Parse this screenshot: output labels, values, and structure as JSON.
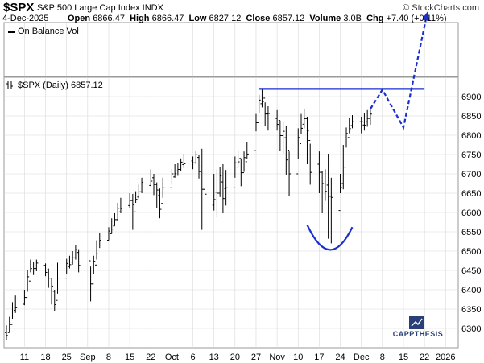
{
  "header": {
    "symbol": "$SPX",
    "name": "S&P 500 Large Cap Index INDX",
    "source": "© StockCharts.com",
    "date": "4-Dec-2025",
    "open_label": "Open",
    "open": "6866.47",
    "high_label": "High",
    "high": "6866.47",
    "low_label": "Low",
    "low": "6827.12",
    "close_label": "Close",
    "close": "6857.12",
    "volume_label": "Volume",
    "volume": "3.0B",
    "chg_label": "Chg",
    "chg": "+7.40 (+0.11%)"
  },
  "indicator_label": "On Balance Vol",
  "price_label": "$SPX (Daily) 6857.12",
  "logo_text": "CAPPTHESIS",
  "colors": {
    "price_bars": "#000000",
    "annotation": "#1a2fd0",
    "grid": "#d8d8d8",
    "logo": "#2a3f78"
  },
  "chart_data": {
    "type": "ohlc",
    "title": "$SPX (Daily) 6857.12",
    "ylim": [
      6250,
      6950
    ],
    "yticks": [
      6300,
      6350,
      6400,
      6450,
      6500,
      6550,
      6600,
      6650,
      6700,
      6750,
      6800,
      6850,
      6900
    ],
    "x_tick_labels": [
      "11",
      "18",
      "25",
      "Sep",
      "8",
      "15",
      "22",
      "Oct",
      "6",
      "13",
      "20",
      "27",
      "Nov",
      "10",
      "17",
      "24",
      "Dec",
      "8",
      "15",
      "22",
      "2026"
    ],
    "x_tick_dates": [
      "2025-08-11",
      "2025-08-18",
      "2025-08-25",
      "2025-09-01",
      "2025-09-08",
      "2025-09-15",
      "2025-09-22",
      "2025-09-29",
      "2025-10-06",
      "2025-10-13",
      "2025-10-20",
      "2025-10-27",
      "2025-11-03",
      "2025-11-10",
      "2025-11-17",
      "2025-11-24",
      "2025-12-01",
      "2025-12-08",
      "2025-12-15",
      "2025-12-22",
      "2025-12-29"
    ],
    "grid": true,
    "series": [
      {
        "type": "ohlc",
        "bars": [
          {
            "date": "2025-08-05",
            "high": 6308,
            "low": 6270
          },
          {
            "date": "2025-08-06",
            "high": 6330,
            "low": 6290
          },
          {
            "date": "2025-08-07",
            "high": 6368,
            "low": 6325
          },
          {
            "date": "2025-08-08",
            "high": 6385,
            "low": 6340
          },
          {
            "date": "2025-08-11",
            "high": 6400,
            "low": 6360
          },
          {
            "date": "2025-08-12",
            "high": 6450,
            "low": 6395
          },
          {
            "date": "2025-08-13",
            "high": 6478,
            "low": 6445
          },
          {
            "date": "2025-08-14",
            "high": 6472,
            "low": 6438
          },
          {
            "date": "2025-08-15",
            "high": 6478,
            "low": 6448
          },
          {
            "date": "2025-08-18",
            "high": 6468,
            "low": 6435
          },
          {
            "date": "2025-08-19",
            "high": 6455,
            "low": 6405
          },
          {
            "date": "2025-08-20",
            "high": 6430,
            "low": 6362
          },
          {
            "date": "2025-08-21",
            "high": 6400,
            "low": 6345
          },
          {
            "date": "2025-08-22",
            "high": 6470,
            "low": 6390
          },
          {
            "date": "2025-08-25",
            "high": 6480,
            "low": 6440
          },
          {
            "date": "2025-08-26",
            "high": 6488,
            "low": 6455
          },
          {
            "date": "2025-08-27",
            "high": 6500,
            "low": 6465
          },
          {
            "date": "2025-08-28",
            "high": 6515,
            "low": 6478
          },
          {
            "date": "2025-08-29",
            "high": 6505,
            "low": 6445
          },
          {
            "date": "2025-09-02",
            "high": 6460,
            "low": 6370
          },
          {
            "date": "2025-09-03",
            "high": 6488,
            "low": 6440
          },
          {
            "date": "2025-09-04",
            "high": 6528,
            "low": 6478
          },
          {
            "date": "2025-09-05",
            "high": 6548,
            "low": 6508
          },
          {
            "date": "2025-09-08",
            "high": 6562,
            "low": 6528
          },
          {
            "date": "2025-09-09",
            "high": 6585,
            "low": 6545
          },
          {
            "date": "2025-09-10",
            "high": 6598,
            "low": 6565
          },
          {
            "date": "2025-09-11",
            "high": 6625,
            "low": 6578
          },
          {
            "date": "2025-09-12",
            "high": 6638,
            "low": 6598
          },
          {
            "date": "2025-09-15",
            "high": 6650,
            "low": 6612
          },
          {
            "date": "2025-09-16",
            "high": 6648,
            "low": 6555
          },
          {
            "date": "2025-09-17",
            "high": 6655,
            "low": 6625
          },
          {
            "date": "2025-09-18",
            "high": 6672,
            "low": 6635
          },
          {
            "date": "2025-09-19",
            "high": 6690,
            "low": 6650
          },
          {
            "date": "2025-09-22",
            "high": 6712,
            "low": 6668
          },
          {
            "date": "2025-09-23",
            "high": 6700,
            "low": 6645
          },
          {
            "date": "2025-09-24",
            "high": 6678,
            "low": 6612
          },
          {
            "date": "2025-09-25",
            "high": 6662,
            "low": 6585
          },
          {
            "date": "2025-09-26",
            "high": 6690,
            "low": 6638
          },
          {
            "date": "2025-09-29",
            "high": 6712,
            "low": 6672
          },
          {
            "date": "2025-09-30",
            "high": 6725,
            "low": 6690
          },
          {
            "date": "2025-10-01",
            "high": 6728,
            "low": 6695
          },
          {
            "date": "2025-10-02",
            "high": 6740,
            "low": 6708
          },
          {
            "date": "2025-10-03",
            "high": 6752,
            "low": 6715
          },
          {
            "date": "2025-10-06",
            "high": 6745,
            "low": 6712
          },
          {
            "date": "2025-10-07",
            "high": 6760,
            "low": 6725
          },
          {
            "date": "2025-10-08",
            "high": 6748,
            "low": 6688
          },
          {
            "date": "2025-10-09",
            "high": 6765,
            "low": 6555
          },
          {
            "date": "2025-10-10",
            "high": 6690,
            "low": 6548
          },
          {
            "date": "2025-10-13",
            "high": 6700,
            "low": 6605
          },
          {
            "date": "2025-10-14",
            "high": 6712,
            "low": 6588
          },
          {
            "date": "2025-10-15",
            "high": 6718,
            "low": 6640
          },
          {
            "date": "2025-10-16",
            "high": 6725,
            "low": 6598
          },
          {
            "date": "2025-10-17",
            "high": 6710,
            "low": 6618
          },
          {
            "date": "2025-10-20",
            "high": 6745,
            "low": 6690
          },
          {
            "date": "2025-10-21",
            "high": 6762,
            "low": 6718
          },
          {
            "date": "2025-10-22",
            "high": 6738,
            "low": 6668
          },
          {
            "date": "2025-10-23",
            "high": 6758,
            "low": 6705
          },
          {
            "date": "2025-10-24",
            "high": 6782,
            "low": 6738
          },
          {
            "date": "2025-10-27",
            "high": 6855,
            "low": 6810
          },
          {
            "date": "2025-10-28",
            "high": 6905,
            "low": 6858
          },
          {
            "date": "2025-10-29",
            "high": 6920,
            "low": 6872
          },
          {
            "date": "2025-10-30",
            "high": 6885,
            "low": 6825
          },
          {
            "date": "2025-10-31",
            "high": 6875,
            "low": 6812
          },
          {
            "date": "2025-11-03",
            "high": 6865,
            "low": 6812
          },
          {
            "date": "2025-11-04",
            "high": 6838,
            "low": 6760
          },
          {
            "date": "2025-11-05",
            "high": 6835,
            "low": 6752
          },
          {
            "date": "2025-11-06",
            "high": 6825,
            "low": 6698
          },
          {
            "date": "2025-11-07",
            "high": 6758,
            "low": 6642
          },
          {
            "date": "2025-11-10",
            "high": 6818,
            "low": 6738
          },
          {
            "date": "2025-11-11",
            "high": 6855,
            "low": 6802
          },
          {
            "date": "2025-11-12",
            "high": 6868,
            "low": 6818
          },
          {
            "date": "2025-11-13",
            "high": 6848,
            "low": 6725
          },
          {
            "date": "2025-11-14",
            "high": 6778,
            "low": 6672
          },
          {
            "date": "2025-11-17",
            "high": 6758,
            "low": 6650
          },
          {
            "date": "2025-11-18",
            "high": 6708,
            "low": 6598
          },
          {
            "date": "2025-11-19",
            "high": 6712,
            "low": 6630
          },
          {
            "date": "2025-11-20",
            "high": 6752,
            "low": 6532
          },
          {
            "date": "2025-11-21",
            "high": 6690,
            "low": 6520
          },
          {
            "date": "2025-11-24",
            "high": 6700,
            "low": 6650
          },
          {
            "date": "2025-11-25",
            "high": 6775,
            "low": 6660
          },
          {
            "date": "2025-11-26",
            "high": 6820,
            "low": 6768
          },
          {
            "date": "2025-11-27",
            "high": 6845,
            "low": 6805
          },
          {
            "date": "2025-11-28",
            "high": 6852,
            "low": 6818
          },
          {
            "date": "2025-12-01",
            "high": 6848,
            "low": 6805
          },
          {
            "date": "2025-12-02",
            "high": 6858,
            "low": 6812
          },
          {
            "date": "2025-12-03",
            "high": 6865,
            "low": 6822
          },
          {
            "date": "2025-12-04",
            "high": 6866.47,
            "low": 6827.12
          }
        ]
      }
    ],
    "annotations": [
      {
        "type": "resistance_line",
        "value": 6920,
        "from": "2025-10-28",
        "to": "2025-12-22"
      },
      {
        "type": "rounded_bottom_arc",
        "from": "2025-11-13",
        "to": "2025-11-28",
        "bottom": 6505
      },
      {
        "type": "projection_path",
        "points": [
          {
            "date": "2025-12-04",
            "value": 6868
          },
          {
            "date": "2025-12-08",
            "value": 6918
          },
          {
            "date": "2025-12-15",
            "value": 6820
          },
          {
            "date": "2025-12-23",
            "value": 7120
          }
        ]
      }
    ]
  }
}
